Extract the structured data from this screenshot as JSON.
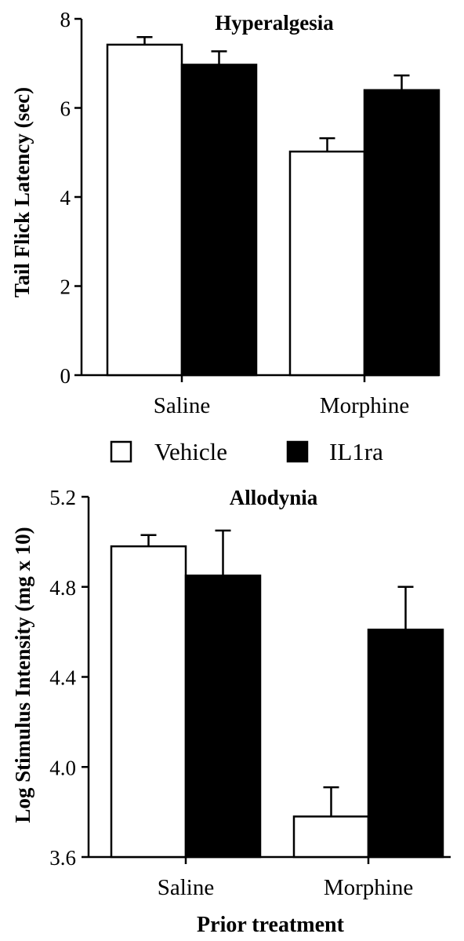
{
  "legend": {
    "items": [
      {
        "label": "Vehicle",
        "color": "#ffffff"
      },
      {
        "label": "IL1ra",
        "color": "#000000"
      }
    ]
  },
  "chart_data": [
    {
      "type": "bar",
      "title": "Hyperalgesia",
      "ylabel": "Tail Flick Latency (sec)",
      "xlabel": "",
      "categories": [
        "Saline",
        "Morphine"
      ],
      "ylim": [
        0,
        8
      ],
      "yticks": [
        "0",
        "2",
        "4",
        "6",
        "8"
      ],
      "series": [
        {
          "name": "Vehicle",
          "color": "#ffffff",
          "values": [
            7.42,
            5.02
          ],
          "errors": [
            0.17,
            0.3
          ]
        },
        {
          "name": "IL1ra",
          "color": "#000000",
          "values": [
            6.97,
            6.4
          ],
          "errors": [
            0.3,
            0.33
          ]
        }
      ]
    },
    {
      "type": "bar",
      "title": "Allodynia",
      "ylabel": "Log Stimulus Intensity (mg x 10)",
      "xlabel": "Prior treatment",
      "categories": [
        "Saline",
        "Morphine"
      ],
      "ylim": [
        3.6,
        5.2
      ],
      "yticks": [
        "3.6",
        "4.0",
        "4.4",
        "4.8",
        "5.2"
      ],
      "series": [
        {
          "name": "Vehicle",
          "color": "#ffffff",
          "values": [
            4.98,
            3.78
          ],
          "errors": [
            0.05,
            0.13
          ]
        },
        {
          "name": "IL1ra",
          "color": "#000000",
          "values": [
            4.85,
            4.61
          ],
          "errors": [
            0.2,
            0.19
          ]
        }
      ]
    }
  ]
}
